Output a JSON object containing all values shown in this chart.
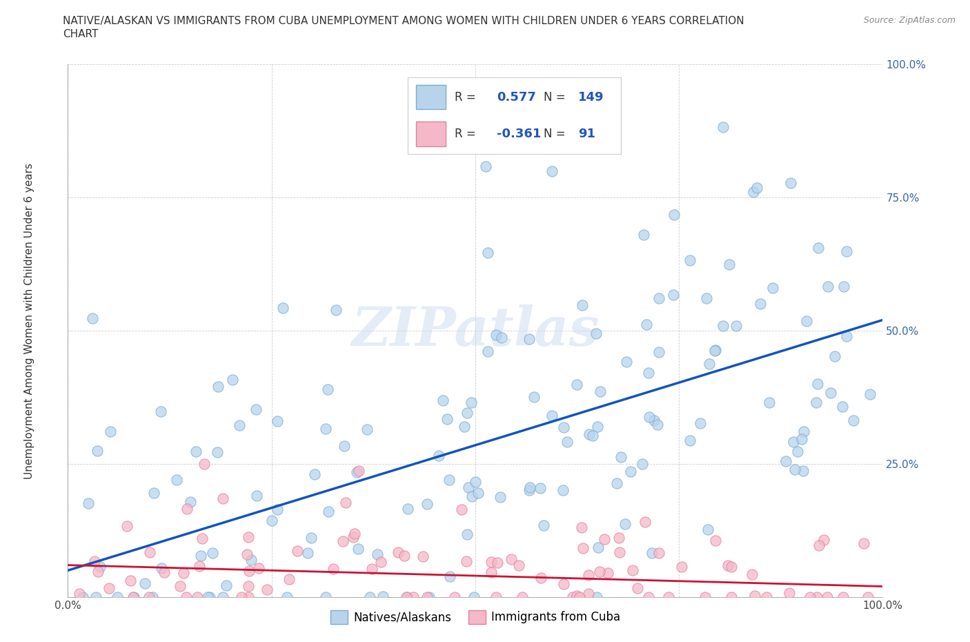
{
  "title_line1": "NATIVE/ALASKAN VS IMMIGRANTS FROM CUBA UNEMPLOYMENT AMONG WOMEN WITH CHILDREN UNDER 6 YEARS CORRELATION",
  "title_line2": "CHART",
  "source": "Source: ZipAtlas.com",
  "ylabel": "Unemployment Among Women with Children Under 6 years",
  "xlim": [
    0,
    100
  ],
  "ylim": [
    0,
    100
  ],
  "xticklabels": [
    "0.0%",
    "",
    "",
    "",
    "100.0%"
  ],
  "yticklabels": [
    "",
    "25.0%",
    "50.0%",
    "75.0%",
    "100.0%"
  ],
  "series1_color": "#b8d4ed",
  "series1_edge": "#7aabce",
  "series2_color": "#f5b8c8",
  "series2_edge": "#e080a0",
  "trendline1_color": "#1155bb",
  "trendline2_color": "#cc1133",
  "R1": 0.577,
  "N1": 149,
  "R2": -0.361,
  "N2": 91,
  "watermark": "ZIPatlas",
  "legend_labels": [
    "Natives/Alaskans",
    "Immigrants from Cuba"
  ],
  "trendline1_x0": 0,
  "trendline1_y0": 5,
  "trendline1_x1": 100,
  "trendline1_y1": 52,
  "trendline2_x0": 0,
  "trendline2_y0": 6,
  "trendline2_x1": 100,
  "trendline2_y1": 2
}
